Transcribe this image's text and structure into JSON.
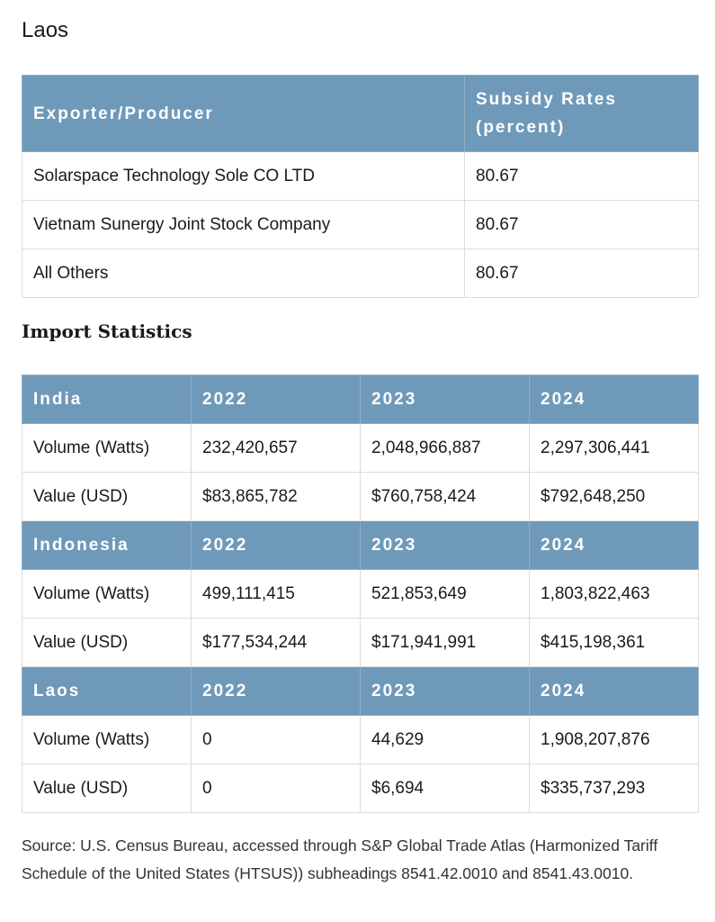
{
  "heading": "Laos",
  "subsidy_table": {
    "headers": [
      "Exporter/Producer",
      "Subsidy Rates (percent)"
    ],
    "rows": [
      [
        "Solarspace Technology Sole CO LTD",
        "80.67"
      ],
      [
        "Vietnam Sunergy Joint Stock Company",
        "80.67"
      ],
      [
        "All Others",
        "80.67"
      ]
    ]
  },
  "import_heading": "Import Statistics",
  "import_table": {
    "sections": [
      {
        "country": "India",
        "years": [
          "2022",
          "2023",
          "2024"
        ],
        "rows": [
          [
            "Volume (Watts)",
            "232,420,657",
            "2,048,966,887",
            "2,297,306,441"
          ],
          [
            "Value (USD)",
            "$83,865,782",
            "$760,758,424",
            "$792,648,250"
          ]
        ]
      },
      {
        "country": "Indonesia",
        "years": [
          "2022",
          "2023",
          "2024"
        ],
        "rows": [
          [
            "Volume (Watts)",
            "499,111,415",
            "521,853,649",
            "1,803,822,463"
          ],
          [
            "Value (USD)",
            "$177,534,244",
            "$171,941,991",
            "$415,198,361"
          ]
        ]
      },
      {
        "country": "Laos",
        "years": [
          "2022",
          "2023",
          "2024"
        ],
        "rows": [
          [
            "Volume (Watts)",
            "0",
            "44,629",
            "1,908,207,876"
          ],
          [
            "Value (USD)",
            "0",
            "$6,694",
            "$335,737,293"
          ]
        ]
      }
    ]
  },
  "source": "Source: U.S. Census Bureau, accessed through S&P Global Trade Atlas (Harmonized Tariff Schedule of the United States (HTSUS)) subheadings 8541.42.0010 and 8541.43.0010.",
  "colors": {
    "header_bg": "#6f99b9",
    "border": "#dcdcdc"
  }
}
